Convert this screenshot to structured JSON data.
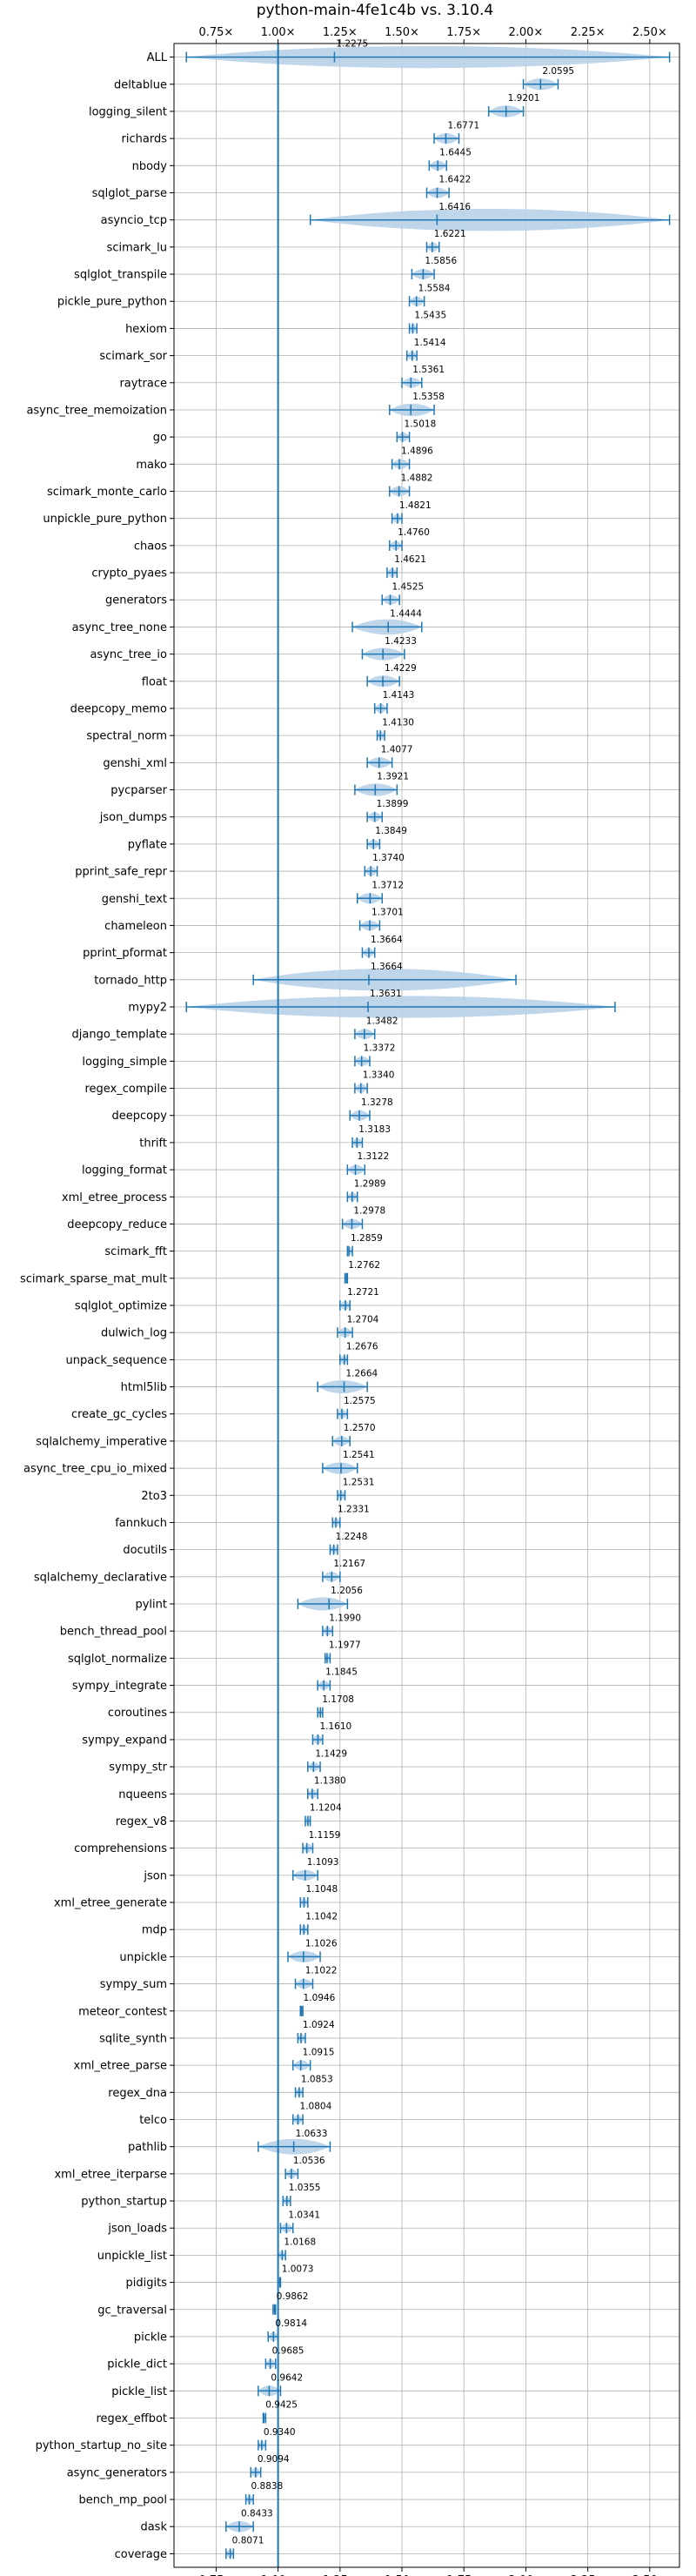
{
  "chart_data": {
    "type": "violin",
    "title": "python-main-4fe1c4b vs. 3.10.4",
    "x_ticks": [
      "0.75×",
      "1.00×",
      "1.25×",
      "1.50×",
      "1.75×",
      "2.00×",
      "2.25×",
      "2.50×"
    ],
    "x_tick_values": [
      0.75,
      1.0,
      1.25,
      1.5,
      1.75,
      2.0,
      2.25,
      2.5
    ],
    "xlim": [
      0.58,
      2.62
    ],
    "reference_line": 1.0,
    "grid": true,
    "accent_color": "#1f77b4",
    "violin_fill": "#b7d0e8",
    "benchmarks": [
      {
        "name": "ALL",
        "value": 1.2275,
        "min": 0.63,
        "max": 2.58
      },
      {
        "name": "deltablue",
        "value": 2.0595,
        "min": 1.99,
        "max": 2.13
      },
      {
        "name": "logging_silent",
        "value": 1.9201,
        "min": 1.85,
        "max": 1.99
      },
      {
        "name": "richards",
        "value": 1.6771,
        "min": 1.63,
        "max": 1.73
      },
      {
        "name": "nbody",
        "value": 1.6445,
        "min": 1.61,
        "max": 1.68
      },
      {
        "name": "sqlglot_parse",
        "value": 1.6422,
        "min": 1.6,
        "max": 1.69
      },
      {
        "name": "asyncio_tcp",
        "value": 1.6416,
        "min": 1.13,
        "max": 2.58
      },
      {
        "name": "scimark_lu",
        "value": 1.6221,
        "min": 1.6,
        "max": 1.65
      },
      {
        "name": "sqlglot_transpile",
        "value": 1.5856,
        "min": 1.54,
        "max": 1.63
      },
      {
        "name": "pickle_pure_python",
        "value": 1.5584,
        "min": 1.53,
        "max": 1.59
      },
      {
        "name": "hexiom",
        "value": 1.5435,
        "min": 1.53,
        "max": 1.56
      },
      {
        "name": "scimark_sor",
        "value": 1.5414,
        "min": 1.52,
        "max": 1.56
      },
      {
        "name": "raytrace",
        "value": 1.5361,
        "min": 1.5,
        "max": 1.58
      },
      {
        "name": "async_tree_memoization",
        "value": 1.5358,
        "min": 1.45,
        "max": 1.63
      },
      {
        "name": "go",
        "value": 1.5018,
        "min": 1.48,
        "max": 1.53
      },
      {
        "name": "mako",
        "value": 1.4896,
        "min": 1.46,
        "max": 1.53
      },
      {
        "name": "scimark_monte_carlo",
        "value": 1.4882,
        "min": 1.45,
        "max": 1.53
      },
      {
        "name": "unpickle_pure_python",
        "value": 1.4821,
        "min": 1.46,
        "max": 1.5
      },
      {
        "name": "chaos",
        "value": 1.476,
        "min": 1.45,
        "max": 1.5
      },
      {
        "name": "crypto_pyaes",
        "value": 1.4621,
        "min": 1.44,
        "max": 1.48
      },
      {
        "name": "generators",
        "value": 1.4525,
        "min": 1.42,
        "max": 1.49
      },
      {
        "name": "async_tree_none",
        "value": 1.4444,
        "min": 1.3,
        "max": 1.58
      },
      {
        "name": "async_tree_io",
        "value": 1.4233,
        "min": 1.34,
        "max": 1.51
      },
      {
        "name": "float",
        "value": 1.4229,
        "min": 1.36,
        "max": 1.49
      },
      {
        "name": "deepcopy_memo",
        "value": 1.4143,
        "min": 1.39,
        "max": 1.44
      },
      {
        "name": "spectral_norm",
        "value": 1.413,
        "min": 1.4,
        "max": 1.43
      },
      {
        "name": "genshi_xml",
        "value": 1.4077,
        "min": 1.36,
        "max": 1.46
      },
      {
        "name": "pycparser",
        "value": 1.3921,
        "min": 1.31,
        "max": 1.48
      },
      {
        "name": "json_dumps",
        "value": 1.3899,
        "min": 1.36,
        "max": 1.42
      },
      {
        "name": "pyflate",
        "value": 1.3849,
        "min": 1.36,
        "max": 1.41
      },
      {
        "name": "pprint_safe_repr",
        "value": 1.374,
        "min": 1.35,
        "max": 1.4
      },
      {
        "name": "genshi_text",
        "value": 1.3712,
        "min": 1.32,
        "max": 1.42
      },
      {
        "name": "chameleon",
        "value": 1.3701,
        "min": 1.33,
        "max": 1.41
      },
      {
        "name": "pprint_pformat",
        "value": 1.3664,
        "min": 1.34,
        "max": 1.39
      },
      {
        "name": "tornado_http",
        "value": 1.3664,
        "min": 0.9,
        "max": 1.96
      },
      {
        "name": "mypy2",
        "value": 1.3631,
        "min": 0.63,
        "max": 2.36
      },
      {
        "name": "django_template",
        "value": 1.3482,
        "min": 1.31,
        "max": 1.39
      },
      {
        "name": "logging_simple",
        "value": 1.3372,
        "min": 1.31,
        "max": 1.37
      },
      {
        "name": "regex_compile",
        "value": 1.334,
        "min": 1.31,
        "max": 1.36
      },
      {
        "name": "deepcopy",
        "value": 1.3278,
        "min": 1.29,
        "max": 1.37
      },
      {
        "name": "thrift",
        "value": 1.3183,
        "min": 1.3,
        "max": 1.34
      },
      {
        "name": "logging_format",
        "value": 1.3122,
        "min": 1.28,
        "max": 1.35
      },
      {
        "name": "xml_etree_process",
        "value": 1.2989,
        "min": 1.28,
        "max": 1.32
      },
      {
        "name": "deepcopy_reduce",
        "value": 1.2978,
        "min": 1.26,
        "max": 1.34
      },
      {
        "name": "scimark_fft",
        "value": 1.2859,
        "min": 1.28,
        "max": 1.3
      },
      {
        "name": "scimark_sparse_mat_mult",
        "value": 1.2762,
        "min": 1.27,
        "max": 1.28
      },
      {
        "name": "sqlglot_optimize",
        "value": 1.2721,
        "min": 1.25,
        "max": 1.29
      },
      {
        "name": "dulwich_log",
        "value": 1.2704,
        "min": 1.24,
        "max": 1.3
      },
      {
        "name": "unpack_sequence",
        "value": 1.2676,
        "min": 1.25,
        "max": 1.28
      },
      {
        "name": "html5lib",
        "value": 1.2664,
        "min": 1.16,
        "max": 1.36
      },
      {
        "name": "create_gc_cycles",
        "value": 1.2575,
        "min": 1.24,
        "max": 1.28
      },
      {
        "name": "sqlalchemy_imperative",
        "value": 1.257,
        "min": 1.22,
        "max": 1.29
      },
      {
        "name": "async_tree_cpu_io_mixed",
        "value": 1.2541,
        "min": 1.18,
        "max": 1.32
      },
      {
        "name": "2to3",
        "value": 1.2531,
        "min": 1.24,
        "max": 1.27
      },
      {
        "name": "fannkuch",
        "value": 1.2331,
        "min": 1.22,
        "max": 1.25
      },
      {
        "name": "docutils",
        "value": 1.2248,
        "min": 1.21,
        "max": 1.24
      },
      {
        "name": "sqlalchemy_declarative",
        "value": 1.2167,
        "min": 1.18,
        "max": 1.25
      },
      {
        "name": "pylint",
        "value": 1.2056,
        "min": 1.08,
        "max": 1.28
      },
      {
        "name": "bench_thread_pool",
        "value": 1.199,
        "min": 1.18,
        "max": 1.22
      },
      {
        "name": "sqlglot_normalize",
        "value": 1.1977,
        "min": 1.19,
        "max": 1.21
      },
      {
        "name": "sympy_integrate",
        "value": 1.1845,
        "min": 1.16,
        "max": 1.21
      },
      {
        "name": "coroutines",
        "value": 1.1708,
        "min": 1.16,
        "max": 1.18
      },
      {
        "name": "sympy_expand",
        "value": 1.161,
        "min": 1.14,
        "max": 1.18
      },
      {
        "name": "sympy_str",
        "value": 1.1429,
        "min": 1.12,
        "max": 1.17
      },
      {
        "name": "nqueens",
        "value": 1.138,
        "min": 1.12,
        "max": 1.16
      },
      {
        "name": "regex_v8",
        "value": 1.1204,
        "min": 1.11,
        "max": 1.13
      },
      {
        "name": "comprehensions",
        "value": 1.1159,
        "min": 1.1,
        "max": 1.14
      },
      {
        "name": "json",
        "value": 1.1093,
        "min": 1.06,
        "max": 1.16
      },
      {
        "name": "xml_etree_generate",
        "value": 1.1048,
        "min": 1.09,
        "max": 1.12
      },
      {
        "name": "mdp",
        "value": 1.1042,
        "min": 1.09,
        "max": 1.12
      },
      {
        "name": "unpickle",
        "value": 1.1026,
        "min": 1.04,
        "max": 1.17
      },
      {
        "name": "sympy_sum",
        "value": 1.1022,
        "min": 1.07,
        "max": 1.14
      },
      {
        "name": "meteor_contest",
        "value": 1.0946,
        "min": 1.09,
        "max": 1.1
      },
      {
        "name": "sqlite_synth",
        "value": 1.0924,
        "min": 1.08,
        "max": 1.11
      },
      {
        "name": "xml_etree_parse",
        "value": 1.0915,
        "min": 1.06,
        "max": 1.13
      },
      {
        "name": "regex_dna",
        "value": 1.0853,
        "min": 1.07,
        "max": 1.1
      },
      {
        "name": "telco",
        "value": 1.0804,
        "min": 1.06,
        "max": 1.1
      },
      {
        "name": "pathlib",
        "value": 1.0633,
        "min": 0.92,
        "max": 1.21
      },
      {
        "name": "xml_etree_iterparse",
        "value": 1.0536,
        "min": 1.03,
        "max": 1.08
      },
      {
        "name": "python_startup",
        "value": 1.0355,
        "min": 1.02,
        "max": 1.05
      },
      {
        "name": "json_loads",
        "value": 1.0341,
        "min": 1.01,
        "max": 1.06
      },
      {
        "name": "unpickle_list",
        "value": 1.0168,
        "min": 1.0,
        "max": 1.03
      },
      {
        "name": "pidigits",
        "value": 1.0073,
        "min": 1.0,
        "max": 1.01
      },
      {
        "name": "gc_traversal",
        "value": 0.9862,
        "min": 0.98,
        "max": 0.99
      },
      {
        "name": "pickle",
        "value": 0.9814,
        "min": 0.96,
        "max": 1.0
      },
      {
        "name": "pickle_dict",
        "value": 0.9685,
        "min": 0.95,
        "max": 0.99
      },
      {
        "name": "pickle_list",
        "value": 0.9642,
        "min": 0.92,
        "max": 1.01
      },
      {
        "name": "regex_effbot",
        "value": 0.9425,
        "min": 0.94,
        "max": 0.95
      },
      {
        "name": "python_startup_no_site",
        "value": 0.934,
        "min": 0.92,
        "max": 0.95
      },
      {
        "name": "async_generators",
        "value": 0.9094,
        "min": 0.89,
        "max": 0.93
      },
      {
        "name": "bench_mp_pool",
        "value": 0.8838,
        "min": 0.87,
        "max": 0.9
      },
      {
        "name": "dask",
        "value": 0.8433,
        "min": 0.79,
        "max": 0.9
      },
      {
        "name": "coverage",
        "value": 0.8071,
        "min": 0.79,
        "max": 0.82
      }
    ]
  }
}
